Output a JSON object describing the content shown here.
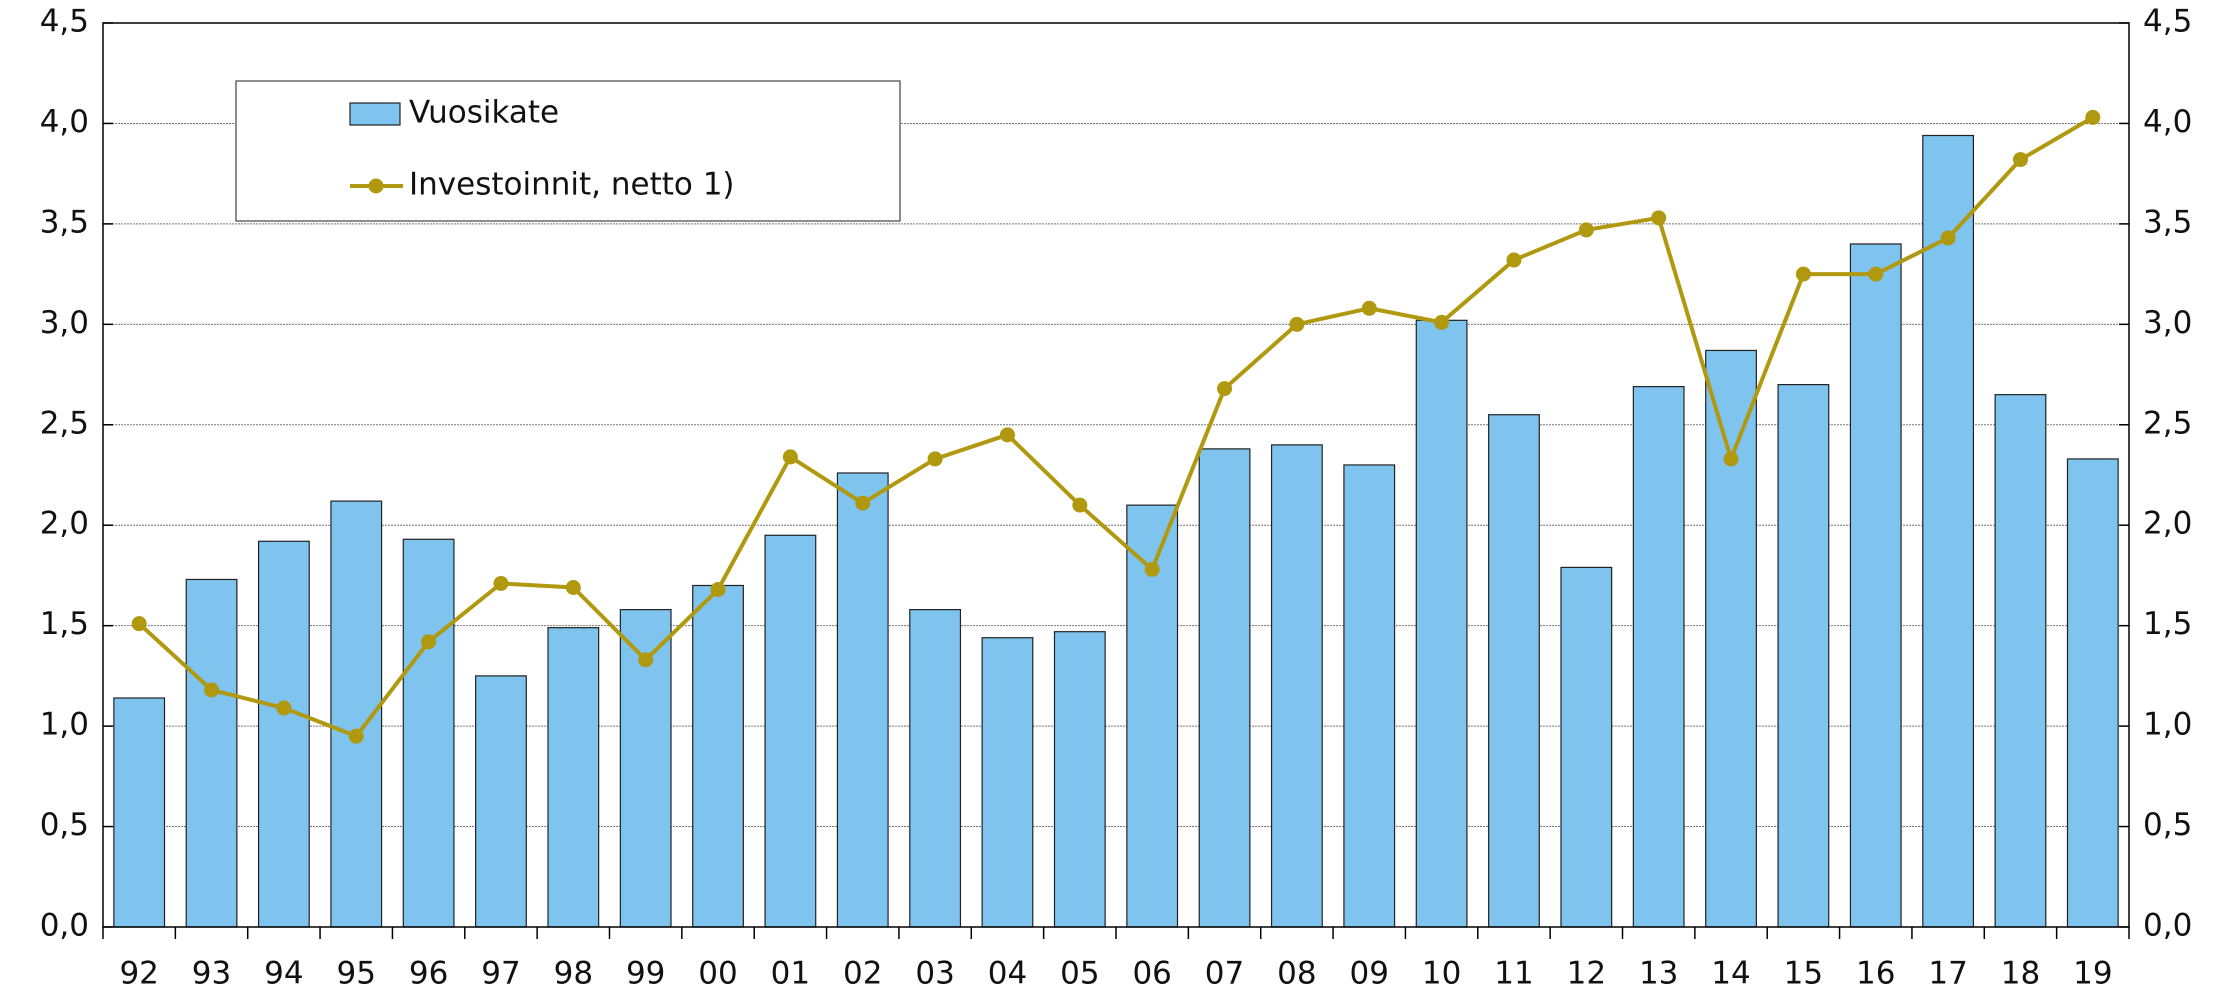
{
  "chart_data": {
    "type": "bar_line",
    "categories": [
      "92",
      "93",
      "94",
      "95",
      "96",
      "97",
      "98",
      "99",
      "00",
      "01",
      "02",
      "03",
      "04",
      "05",
      "06",
      "07",
      "08",
      "09",
      "10",
      "11",
      "12",
      "13",
      "14",
      "15",
      "16",
      "17",
      "18",
      "19"
    ],
    "series": [
      {
        "name": "Vuosikate",
        "type": "bar",
        "color": "#7fc4ee",
        "values": [
          1.14,
          1.73,
          1.92,
          2.12,
          1.93,
          1.25,
          1.49,
          1.58,
          1.7,
          1.95,
          2.26,
          1.58,
          1.44,
          1.47,
          2.1,
          2.38,
          2.4,
          2.3,
          3.02,
          2.55,
          1.79,
          2.69,
          2.87,
          2.7,
          3.4,
          3.94,
          2.65,
          2.33
        ]
      },
      {
        "name": "Investoinnit, netto 1)",
        "type": "line",
        "color": "#b0980f",
        "values": [
          1.51,
          1.18,
          1.09,
          0.95,
          1.42,
          1.71,
          1.69,
          1.33,
          1.68,
          2.34,
          2.11,
          2.33,
          2.45,
          2.1,
          1.78,
          2.68,
          3.0,
          3.08,
          3.01,
          3.32,
          3.47,
          3.53,
          2.33,
          3.25,
          3.25,
          3.43,
          3.82,
          4.03
        ]
      }
    ],
    "ylim": [
      0,
      4.5
    ],
    "yticks": [
      {
        "value": 0,
        "label": "0,0"
      },
      {
        "value": 0.5,
        "label": "0,5"
      },
      {
        "value": 1,
        "label": "1,0"
      },
      {
        "value": 1.5,
        "label": "1,5"
      },
      {
        "value": 2,
        "label": "2,0"
      },
      {
        "value": 2.5,
        "label": "2,5"
      },
      {
        "value": 3,
        "label": "3,0"
      },
      {
        "value": 3.5,
        "label": "3,5"
      },
      {
        "value": 4,
        "label": "4,0"
      },
      {
        "value": 4.5,
        "label": "4,5"
      }
    ],
    "grid": true
  }
}
